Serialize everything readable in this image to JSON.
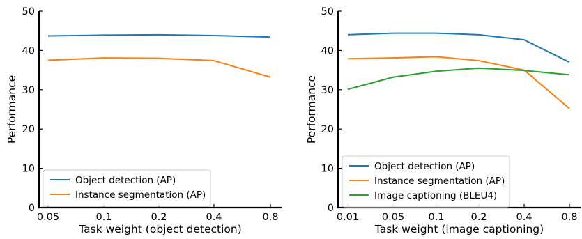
{
  "chart_data": [
    {
      "type": "line",
      "title": "",
      "xlabel": "Task weight (object detection)",
      "ylabel": "Performance",
      "categories": [
        "0.05",
        "0.1",
        "0.2",
        "0.4",
        "0.8"
      ],
      "ylim": [
        0,
        50
      ],
      "yticks": [
        0,
        10,
        20,
        30,
        40,
        50
      ],
      "grid": false,
      "legend_position": "bottom-left",
      "series": [
        {
          "name": "Object detection (AP)",
          "color": "#1f77b4",
          "values": [
            43.7,
            43.9,
            44.0,
            43.8,
            43.4
          ]
        },
        {
          "name": "Instance segmentation (AP)",
          "color": "#ff7f0e",
          "values": [
            37.5,
            38.1,
            38.0,
            37.4,
            33.2
          ]
        }
      ]
    },
    {
      "type": "line",
      "title": "",
      "xlabel": "Task weight (image captioning)",
      "ylabel": "Performance",
      "categories": [
        "0.01",
        "0.05",
        "0.1",
        "0.2",
        "0.4",
        "0.8"
      ],
      "ylim": [
        0,
        50
      ],
      "yticks": [
        0,
        10,
        20,
        30,
        40,
        50
      ],
      "grid": false,
      "legend_position": "bottom-left",
      "series": [
        {
          "name": "Object detection (AP)",
          "color": "#1f77b4",
          "values": [
            44.0,
            44.4,
            44.4,
            44.0,
            42.7,
            37.0
          ]
        },
        {
          "name": "Instance segmentation (AP)",
          "color": "#ff7f0e",
          "values": [
            37.9,
            38.1,
            38.4,
            37.4,
            35.0,
            25.2
          ]
        },
        {
          "name": "Image captioning (BLEU4)",
          "color": "#2ca02c",
          "values": [
            30.1,
            33.2,
            34.7,
            35.5,
            34.9,
            33.8
          ]
        }
      ]
    }
  ]
}
